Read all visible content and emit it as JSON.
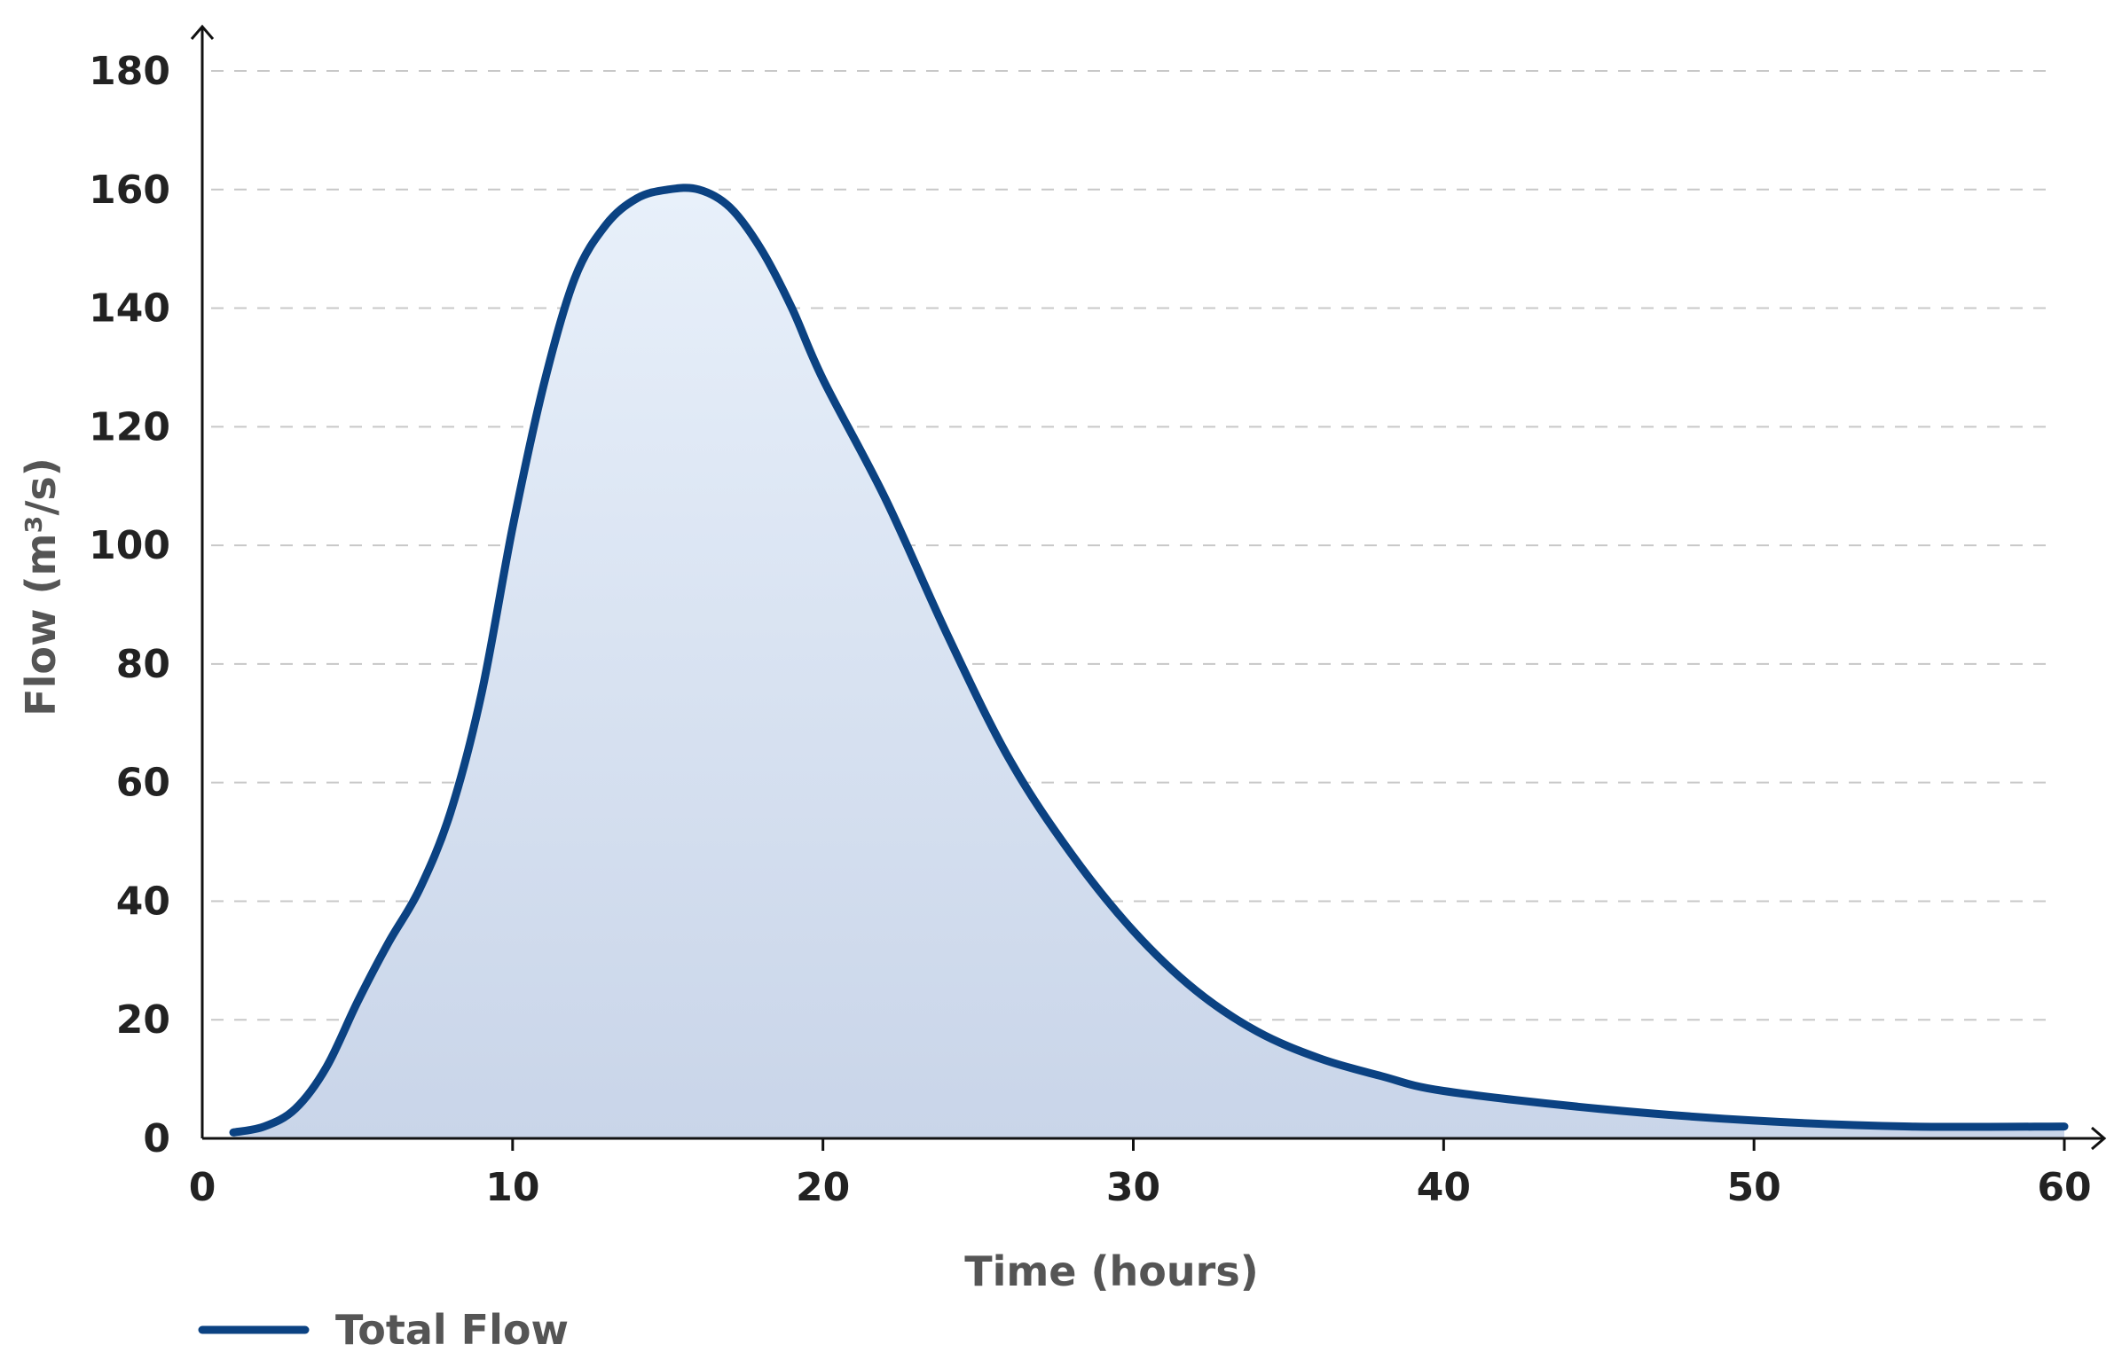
{
  "chart_data": {
    "type": "area",
    "title": "",
    "xlabel": "Time (hours)",
    "ylabel": "Flow (m³/s)",
    "xlim": [
      0,
      60
    ],
    "ylim": [
      0,
      180
    ],
    "x_ticks": [
      0,
      10,
      20,
      30,
      40,
      50,
      60
    ],
    "y_ticks": [
      0,
      20,
      40,
      60,
      80,
      100,
      120,
      140,
      160,
      180
    ],
    "grid": "horizontal dashed",
    "legend_position": "bottom-left",
    "series": [
      {
        "name": "Total Flow",
        "color": "#0b4282",
        "fill_top": "#e8f0fa",
        "fill_bottom": "#c9d5e9",
        "x": [
          1,
          2,
          3,
          4,
          5,
          6,
          7,
          8,
          9,
          10,
          11,
          12,
          13,
          14,
          15,
          16,
          17,
          18,
          19,
          20,
          22,
          24,
          26,
          28,
          30,
          32,
          34,
          36,
          38,
          40,
          45,
          50,
          55,
          60
        ],
        "y": [
          1,
          2,
          5,
          12,
          23,
          33,
          42,
          55,
          75,
          103,
          127,
          145,
          154,
          158.5,
          160,
          160,
          157,
          150,
          140,
          128,
          108,
          85,
          64,
          48,
          35,
          25,
          18,
          13.5,
          10.5,
          8,
          5,
          3,
          2,
          2
        ]
      }
    ]
  }
}
